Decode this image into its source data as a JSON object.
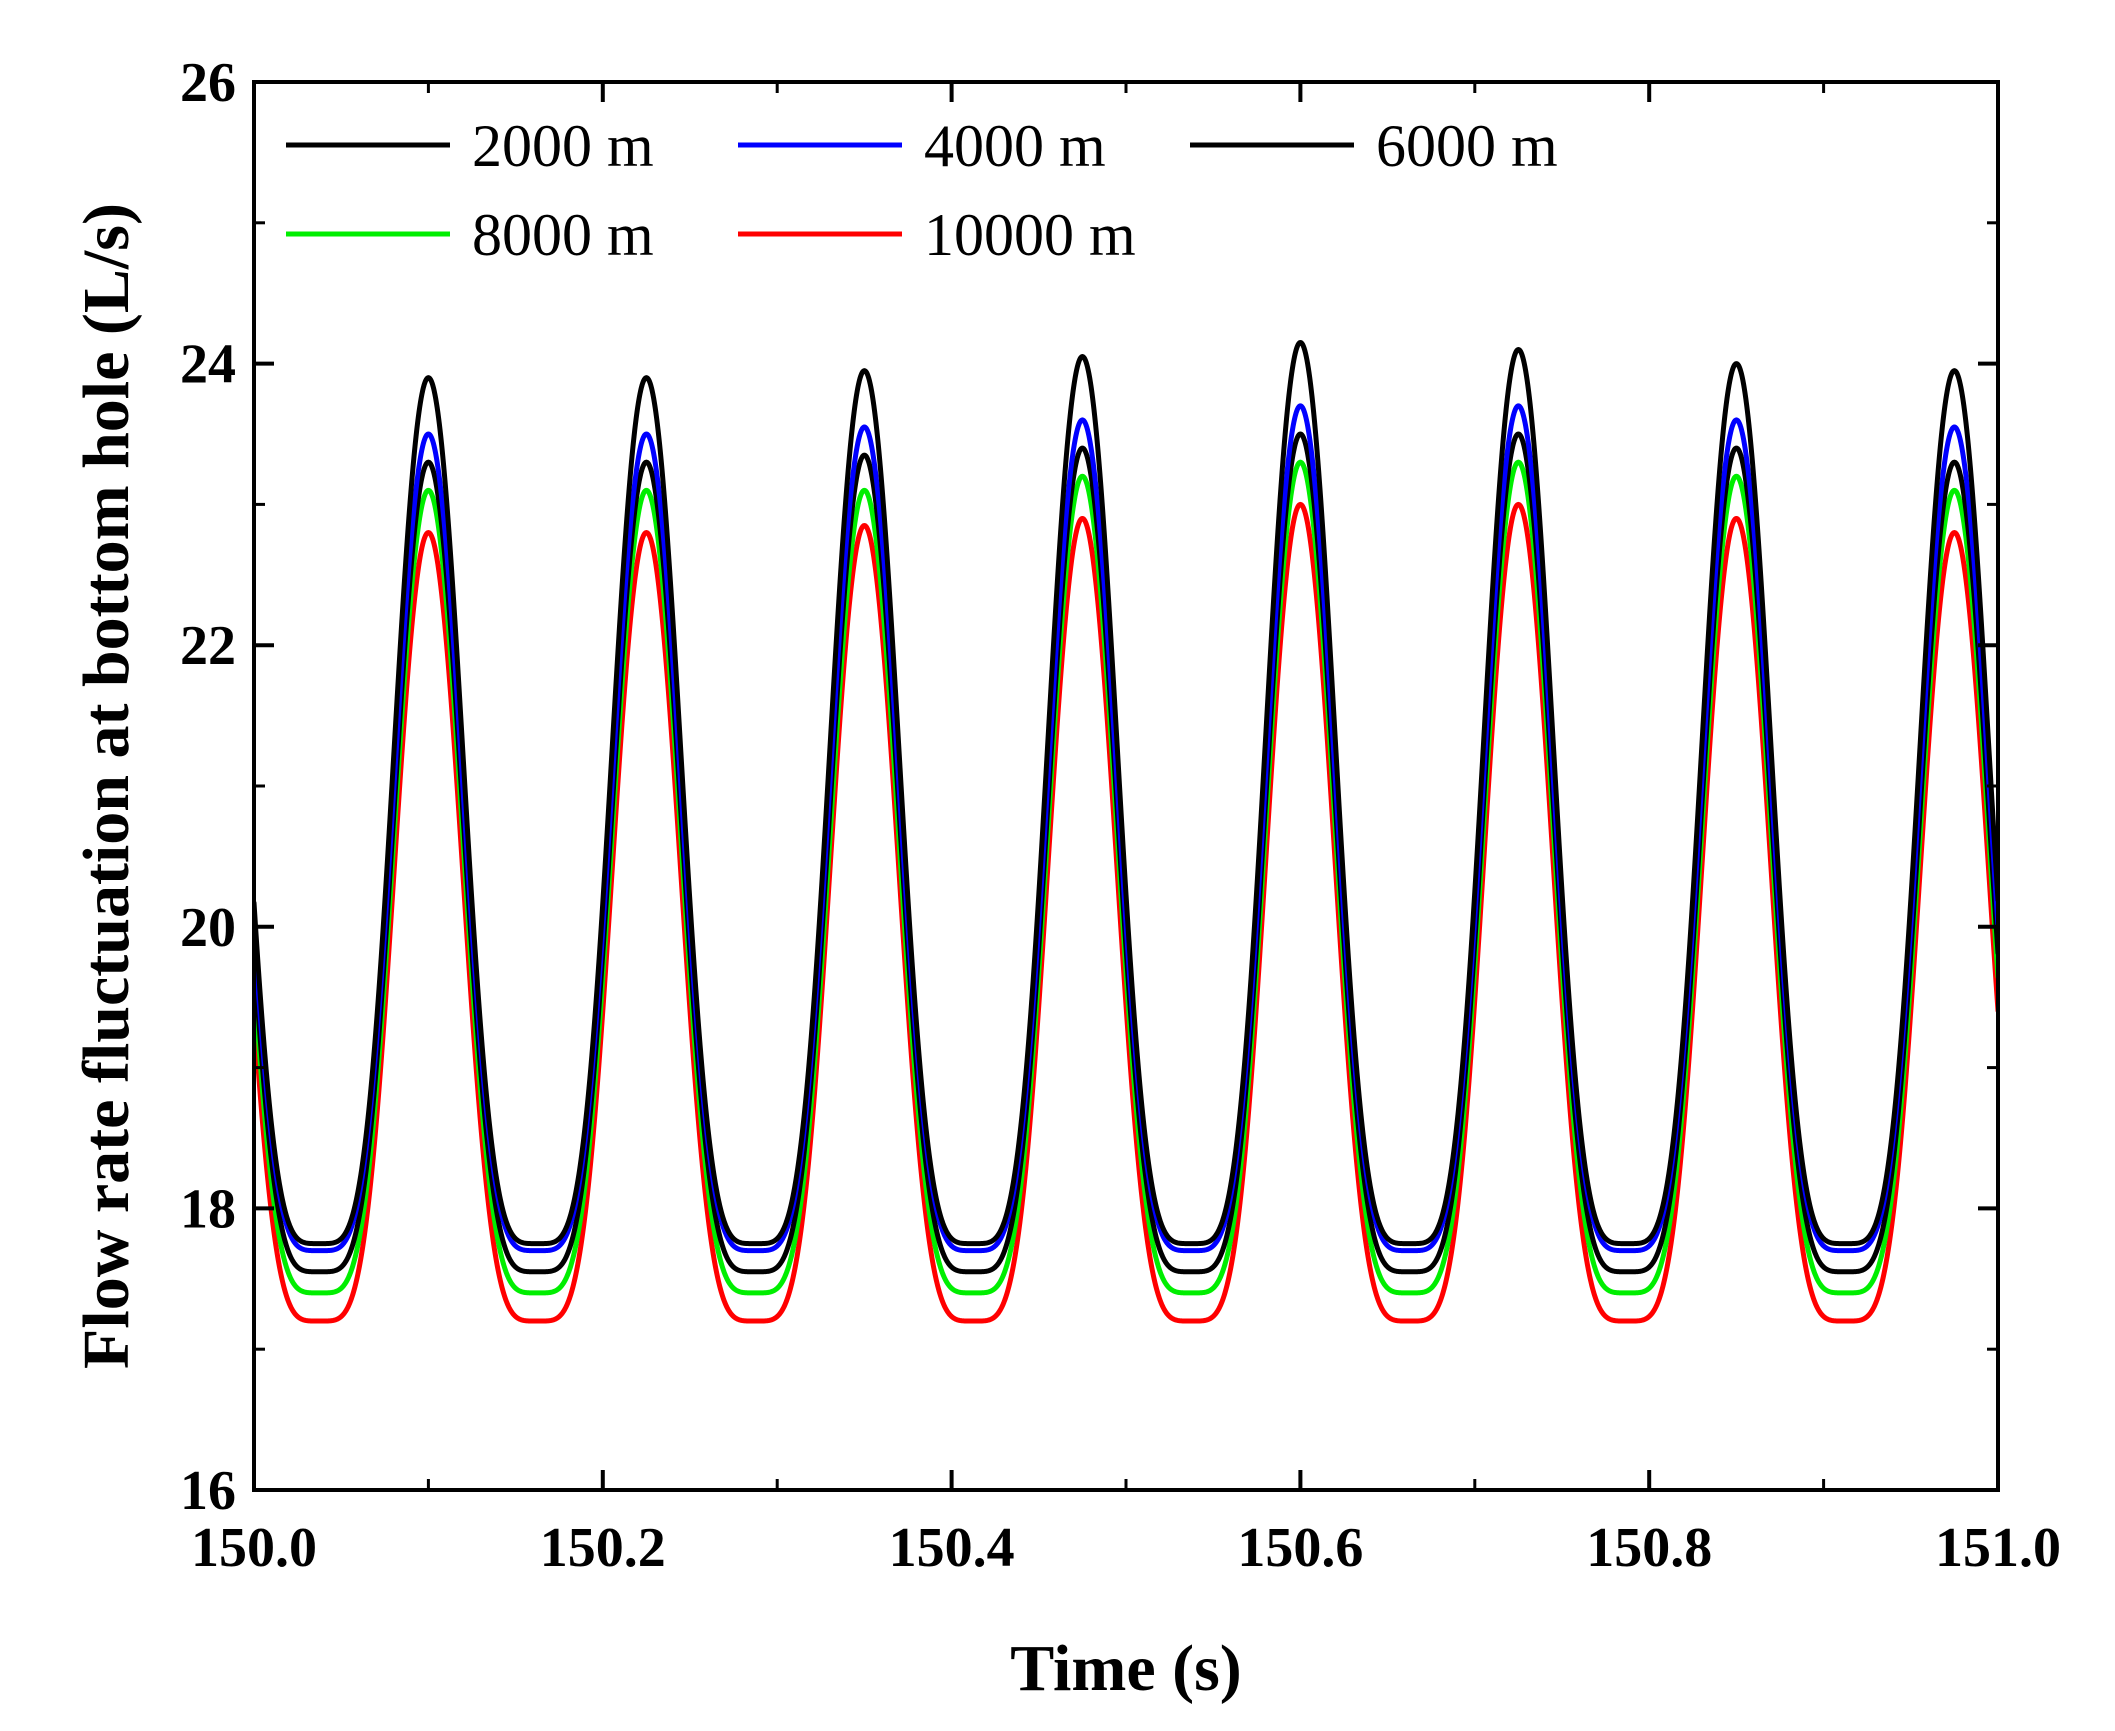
{
  "chart_data": {
    "type": "line",
    "title": "",
    "xlabel": "Time (s)",
    "ylabel": "Flow rate fluctuation at bottom hole (L/s)",
    "xlim": [
      150.0,
      151.0
    ],
    "ylim": [
      16,
      26
    ],
    "xticks": [
      150.0,
      150.2,
      150.4,
      150.6,
      150.8,
      151.0
    ],
    "xtick_labels": [
      "150.0",
      "150.2",
      "150.4",
      "150.6",
      "150.8",
      "151.0"
    ],
    "yticks": [
      16,
      18,
      20,
      22,
      24,
      26
    ],
    "ytick_labels": [
      "16",
      "18",
      "20",
      "22",
      "24",
      "26"
    ],
    "grid": false,
    "legend_position": "top-left",
    "period_s": 0.125,
    "first_peak_s": 150.1,
    "series": [
      {
        "name": "2000 m",
        "color": "#000000",
        "min": 17.75,
        "peaks": [
          23.9,
          23.9,
          23.95,
          24.05,
          24.15,
          24.1,
          24.0,
          23.95
        ]
      },
      {
        "name": "4000 m",
        "color": "#0000ff",
        "min": 17.7,
        "peaks": [
          23.5,
          23.5,
          23.55,
          23.6,
          23.7,
          23.7,
          23.6,
          23.55
        ]
      },
      {
        "name": "6000 m",
        "color": "#000000",
        "min": 17.55,
        "peaks": [
          23.3,
          23.3,
          23.35,
          23.4,
          23.5,
          23.5,
          23.4,
          23.3
        ]
      },
      {
        "name": "8000 m",
        "color": "#00ee00",
        "min": 17.4,
        "peaks": [
          23.1,
          23.1,
          23.1,
          23.2,
          23.3,
          23.3,
          23.2,
          23.1
        ]
      },
      {
        "name": "10000 m",
        "color": "#ff0000",
        "min": 17.2,
        "peaks": [
          22.8,
          22.8,
          22.85,
          22.9,
          23.0,
          23.0,
          22.9,
          22.8
        ]
      }
    ]
  }
}
